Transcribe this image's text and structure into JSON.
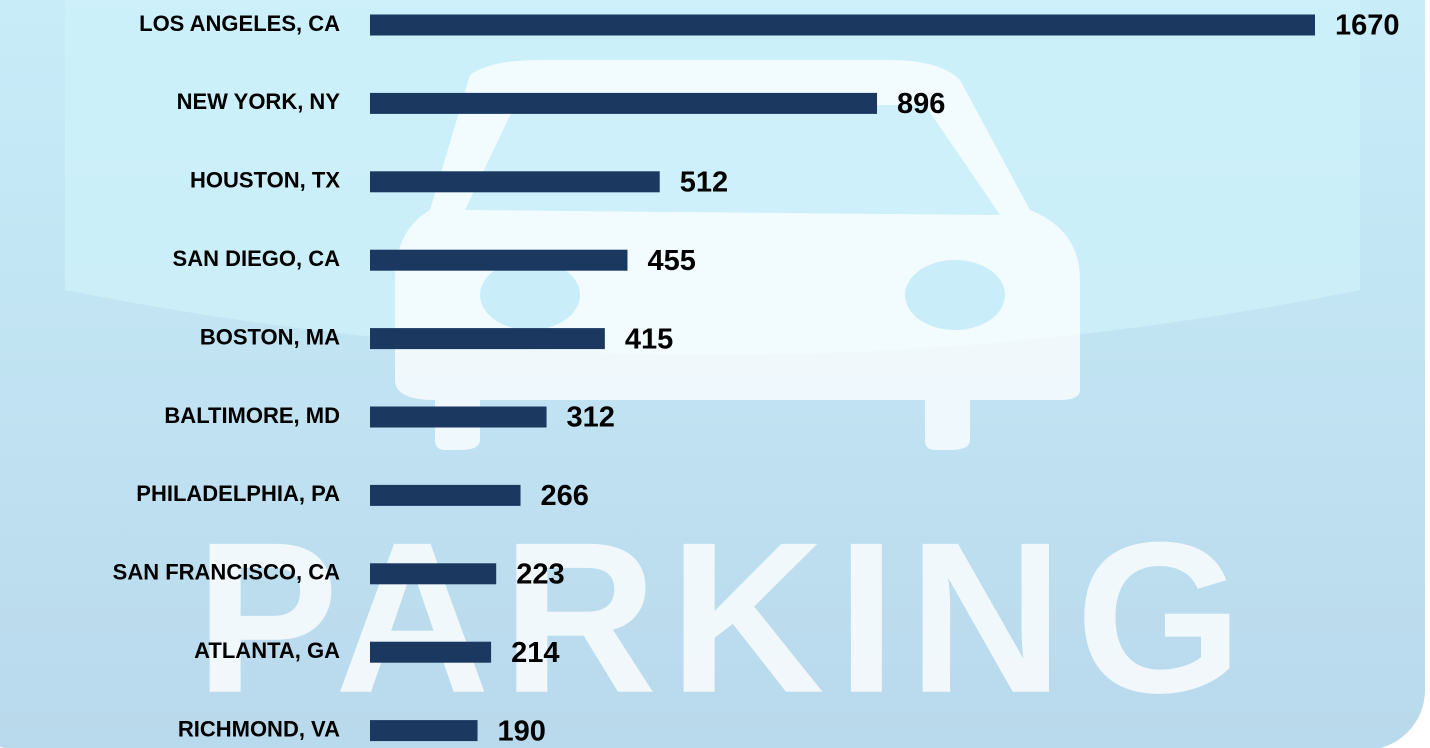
{
  "chart_data": {
    "type": "bar",
    "orientation": "horizontal",
    "background_text": "PARKING",
    "categories": [
      "LOS ANGELES, CA",
      "NEW YORK, NY",
      "HOUSTON, TX",
      "SAN DIEGO, CA",
      "BOSTON, MA",
      "BALTIMORE, MD",
      "PHILADELPHIA, PA",
      "SAN FRANCISCO, CA",
      "ATLANTA, GA",
      "RICHMOND, VA"
    ],
    "values": [
      1670,
      896,
      512,
      455,
      415,
      312,
      266,
      223,
      214,
      190
    ],
    "color": "#1b3860"
  }
}
